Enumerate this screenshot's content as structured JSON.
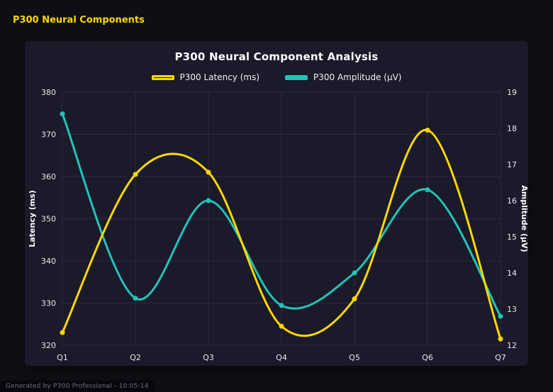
{
  "header": {
    "title": "P300 Neural Components"
  },
  "footer": {
    "text": "Generated by P300 Professional - 10:05:14"
  },
  "theme": {
    "page_bg": "#0e0e15",
    "panel_bg": "#1a1a2a",
    "accent_yellow": "#ffd700",
    "accent_teal": "#22c3b7",
    "grid_color": "rgba(255,255,255,0.08)",
    "text_color": "#e8e8f0"
  },
  "chart_data": {
    "type": "line",
    "title": "P300 Neural Component Analysis",
    "categories": [
      "Q1",
      "Q2",
      "Q3",
      "Q4",
      "Q5",
      "Q6",
      "Q7"
    ],
    "series": [
      {
        "name": "P300 Latency (ms)",
        "color": "#ffd700",
        "axis": "left",
        "legend_style": "outline",
        "values": [
          323,
          360.5,
          361,
          324.5,
          331,
          371,
          321.5
        ]
      },
      {
        "name": "P300 Amplitude (μV)",
        "color": "#22c3b7",
        "axis": "right",
        "legend_style": "solid",
        "values": [
          18.4,
          13.3,
          16.0,
          13.1,
          14.0,
          16.3,
          12.8
        ]
      }
    ],
    "left_axis": {
      "label": "Latency (ms)",
      "min": 320,
      "max": 380,
      "step": 10
    },
    "right_axis": {
      "label": "Amplitude (μV)",
      "min": 12,
      "max": 19,
      "step": 1
    },
    "grid": true,
    "legend_position": "top",
    "line_smoothing": "spline"
  }
}
